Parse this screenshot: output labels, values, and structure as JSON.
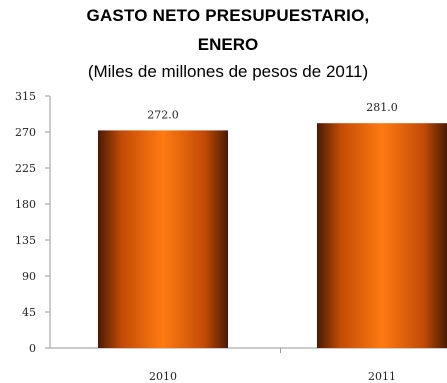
{
  "chart_data": {
    "type": "bar",
    "title_line1": "GASTO NETO PRESUPUESTARIO,",
    "title_line2": "ENERO",
    "subtitle": "(Miles de millones de pesos de 2011)",
    "categories": [
      "2010",
      "2011"
    ],
    "values": [
      272.0,
      281.0
    ],
    "data_labels": [
      "272.0",
      "281.0"
    ],
    "yticks": [
      0,
      45,
      90,
      135,
      180,
      225,
      270,
      315
    ],
    "ytick_labels": [
      "0",
      "45",
      "90",
      "135",
      "180",
      "225",
      "270",
      "315"
    ],
    "ylim": [
      0,
      315
    ],
    "xlabel": "",
    "ylabel": "",
    "grid": false,
    "legend": "none",
    "bar_gradient": {
      "edge": "#4a1a04",
      "mid": "#c24b06",
      "center": "#ff7a12"
    },
    "axis_color": "#9a9a9a"
  }
}
